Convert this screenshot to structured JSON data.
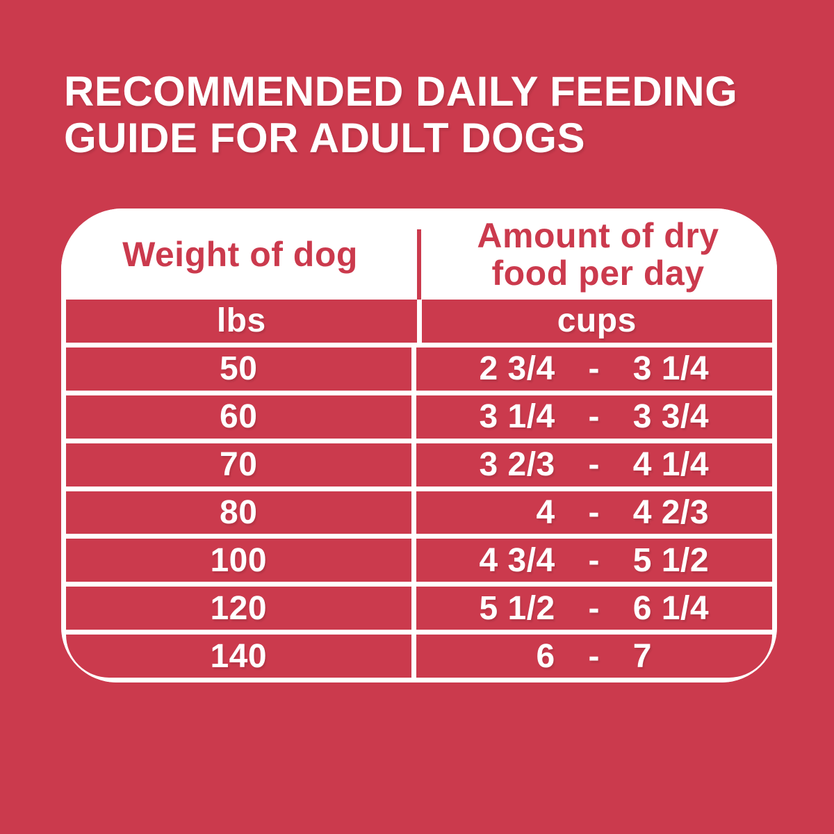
{
  "page": {
    "background_color": "#CB3A4D",
    "card_color": "#FFFFFF",
    "accent_text_color": "#CB3A4D"
  },
  "title": "RECOMMENDED DAILY FEEDING\nGUIDE FOR ADULT DOGS",
  "table": {
    "range_separator": "-",
    "columns": [
      {
        "header": "Weight of dog",
        "unit": "lbs"
      },
      {
        "header": "Amount of dry\nfood per day",
        "unit": "cups"
      }
    ],
    "rows": [
      {
        "weight": "50",
        "from": "2 3/4",
        "to": "3 1/4"
      },
      {
        "weight": "60",
        "from": "3 1/4",
        "to": "3 3/4"
      },
      {
        "weight": "70",
        "from": "3 2/3",
        "to": "4 1/4"
      },
      {
        "weight": "80",
        "from": "4",
        "to": "4 2/3"
      },
      {
        "weight": "100",
        "from": "4 3/4",
        "to": "5 1/2"
      },
      {
        "weight": "120",
        "from": "5 1/2",
        "to": "6 1/4"
      },
      {
        "weight": "140",
        "from": "6",
        "to": "7"
      }
    ]
  },
  "chart_data": {
    "type": "table",
    "title": "RECOMMENDED DAILY FEEDING GUIDE FOR ADULT DOGS",
    "columns": [
      "Weight of dog (lbs)",
      "Amount of dry food per day (cups)"
    ],
    "rows": [
      [
        50,
        "2 3/4 - 3 1/4"
      ],
      [
        60,
        "3 1/4 - 3 3/4"
      ],
      [
        70,
        "3 2/3 - 4 1/4"
      ],
      [
        80,
        "4 - 4 2/3"
      ],
      [
        100,
        "4 3/4 - 5 1/2"
      ],
      [
        120,
        "5 1/2 - 6 1/4"
      ],
      [
        140,
        "6 - 7"
      ]
    ]
  }
}
